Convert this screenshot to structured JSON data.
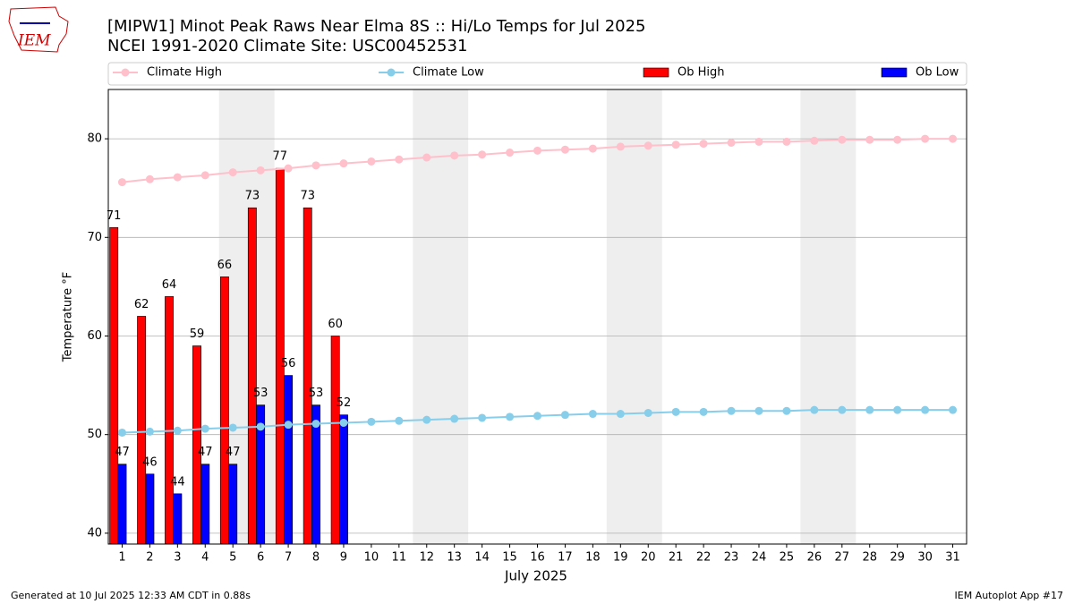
{
  "chart_data": {
    "type": "bar_line",
    "title": "[MIPW1] Minot Peak Raws Near Elma 8S :: Hi/Lo Temps for Jul 2025",
    "subtitle": "NCEI 1991-2020 Climate Site: USC00452531",
    "xlabel": "July 2025",
    "ylabel": "Temperature °F",
    "x": [
      1,
      2,
      3,
      4,
      5,
      6,
      7,
      8,
      9,
      10,
      11,
      12,
      13,
      14,
      15,
      16,
      17,
      18,
      19,
      20,
      21,
      22,
      23,
      24,
      25,
      26,
      27,
      28,
      29,
      30,
      31
    ],
    "xlim": [
      0.5,
      31.5
    ],
    "ylim": [
      38.9,
      85
    ],
    "yticks": [
      40,
      50,
      60,
      70,
      80
    ],
    "grid": true,
    "shaded_days": [
      [
        5,
        6
      ],
      [
        12,
        13
      ],
      [
        19,
        20
      ],
      [
        26,
        27
      ]
    ],
    "shade_color": "#eeeeee",
    "series": [
      {
        "name": "Climate High",
        "kind": "line",
        "color": "#ffc0cb",
        "values": [
          75.6,
          75.9,
          76.1,
          76.3,
          76.6,
          76.8,
          77.0,
          77.3,
          77.5,
          77.7,
          77.9,
          78.1,
          78.3,
          78.4,
          78.6,
          78.8,
          78.9,
          79.0,
          79.2,
          79.3,
          79.4,
          79.5,
          79.6,
          79.7,
          79.7,
          79.8,
          79.9,
          79.9,
          79.9,
          80.0,
          80.0
        ]
      },
      {
        "name": "Climate Low",
        "kind": "line",
        "color": "#87ceeb",
        "values": [
          50.2,
          50.3,
          50.4,
          50.6,
          50.7,
          50.8,
          51.0,
          51.1,
          51.2,
          51.3,
          51.4,
          51.5,
          51.6,
          51.7,
          51.8,
          51.9,
          52.0,
          52.1,
          52.1,
          52.2,
          52.3,
          52.3,
          52.4,
          52.4,
          52.4,
          52.5,
          52.5,
          52.5,
          52.5,
          52.5,
          52.5
        ]
      },
      {
        "name": "Ob High",
        "kind": "bar",
        "color": "#ff0000",
        "values": [
          71,
          62,
          64,
          59,
          66,
          73,
          77,
          73,
          60,
          null,
          null,
          null,
          null,
          null,
          null,
          null,
          null,
          null,
          null,
          null,
          null,
          null,
          null,
          null,
          null,
          null,
          null,
          null,
          null,
          null,
          null
        ]
      },
      {
        "name": "Ob Low",
        "kind": "bar",
        "color": "#0000ff",
        "values": [
          47,
          46,
          44,
          47,
          47,
          53,
          56,
          53,
          52,
          null,
          null,
          null,
          null,
          null,
          null,
          null,
          null,
          null,
          null,
          null,
          null,
          null,
          null,
          null,
          null,
          null,
          null,
          null,
          null,
          null,
          null
        ]
      }
    ]
  },
  "logo": "IEM",
  "footer": {
    "left": "Generated at 10 Jul 2025 12:33 AM CDT in 0.88s",
    "right": "IEM Autoplot App #17"
  }
}
